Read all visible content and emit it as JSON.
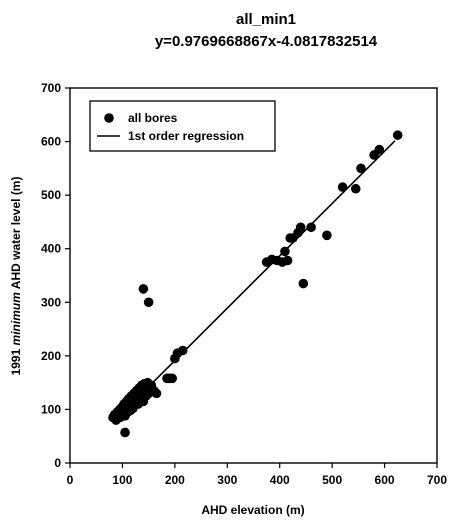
{
  "chart_data": {
    "type": "scatter",
    "title": "all_min1",
    "subtitle": "y=0.9769668867x-4.0817832514",
    "xlabel": "AHD elevation (m)",
    "ylabel_parts": [
      "1991 ",
      "minimum",
      " AHD water level (m)"
    ],
    "xlim": [
      0,
      700
    ],
    "ylim": [
      0,
      700
    ],
    "xticks": [
      "0",
      "100",
      "200",
      "300",
      "400",
      "500",
      "600",
      "700"
    ],
    "yticks": [
      "0",
      "100",
      "200",
      "300",
      "400",
      "500",
      "600",
      "700"
    ],
    "grid": false,
    "legend_position": "top-left",
    "series": [
      {
        "name": "all bores",
        "kind": "points",
        "x": [
          82,
          85,
          88,
          90,
          92,
          95,
          95,
          98,
          100,
          100,
          102,
          103,
          105,
          105,
          108,
          110,
          110,
          112,
          113,
          115,
          115,
          117,
          118,
          120,
          120,
          122,
          123,
          125,
          125,
          127,
          128,
          130,
          130,
          132,
          133,
          135,
          135,
          137,
          138,
          140,
          140,
          142,
          145,
          145,
          148,
          150,
          150,
          155,
          160,
          165,
          185,
          190,
          195,
          200,
          205,
          215,
          140,
          150,
          105,
          375,
          385,
          395,
          405,
          410,
          415,
          420,
          425,
          435,
          440,
          445,
          460,
          490,
          520,
          545,
          555,
          580,
          590,
          625
        ],
        "y": [
          85,
          90,
          80,
          95,
          88,
          100,
          85,
          92,
          105,
          90,
          95,
          110,
          100,
          88,
          115,
          105,
          95,
          120,
          100,
          110,
          98,
          125,
          105,
          115,
          102,
          130,
          108,
          120,
          112,
          135,
          115,
          125,
          110,
          140,
          118,
          130,
          120,
          145,
          125,
          135,
          115,
          148,
          138,
          125,
          150,
          140,
          130,
          145,
          135,
          130,
          158,
          158,
          158,
          195,
          205,
          210,
          325,
          300,
          57,
          375,
          380,
          378,
          375,
          395,
          378,
          420,
          420,
          430,
          440,
          335,
          440,
          425,
          515,
          512,
          550,
          575,
          585,
          612
        ]
      },
      {
        "name": "1st order regression",
        "kind": "line",
        "slope": 0.9769668867,
        "intercept": -4.0817832514,
        "x_range": [
          85,
          620
        ]
      }
    ],
    "colors": {
      "points": "#000000",
      "line": "#000000"
    }
  }
}
